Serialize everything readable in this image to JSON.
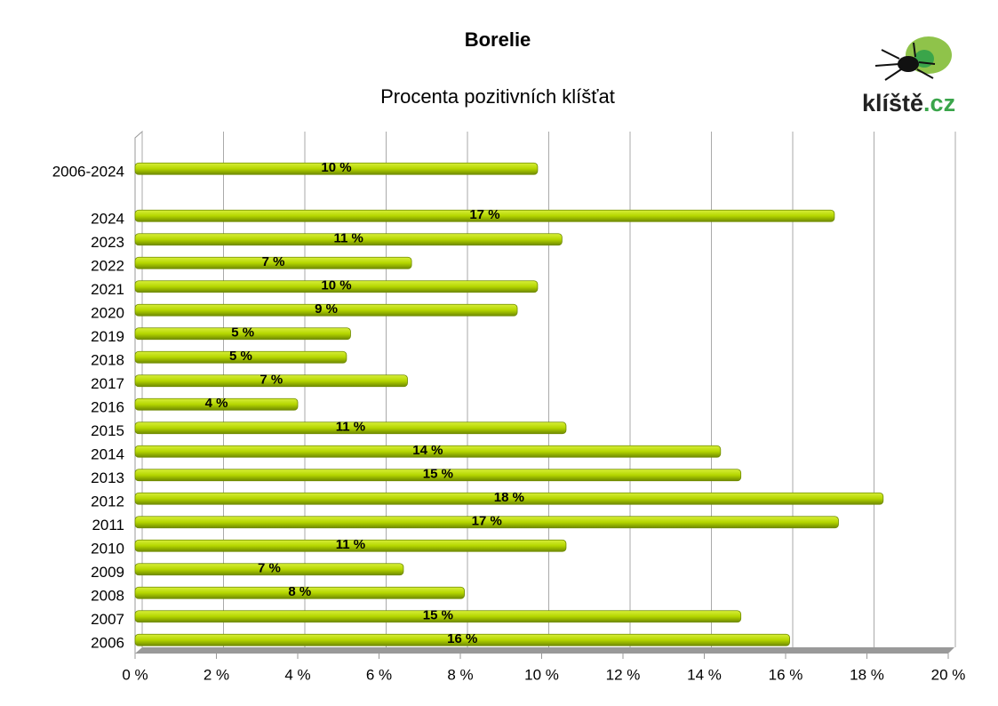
{
  "chart_data": {
    "type": "bar",
    "orientation": "horizontal",
    "title": "Borelie",
    "subtitle": "Procenta pozitivních klíšťat",
    "logo": {
      "name": "klíště",
      "domain": ".cz"
    },
    "categories": [
      "2006-2024",
      null,
      "2024",
      "2023",
      "2022",
      "2021",
      "2020",
      "2019",
      "2018",
      "2017",
      "2016",
      "2015",
      "2014",
      "2013",
      "2012",
      "2011",
      "2010",
      "2009",
      "2008",
      "2007",
      "2006"
    ],
    "values": [
      9.9,
      null,
      17.2,
      10.5,
      6.8,
      9.9,
      9.4,
      5.3,
      5.2,
      6.7,
      4.0,
      10.6,
      14.4,
      14.9,
      18.4,
      17.3,
      10.6,
      6.6,
      8.1,
      14.9,
      16.1
    ],
    "value_labels": [
      "10 %",
      null,
      "17 %",
      "11 %",
      "7 %",
      "10 %",
      "9 %",
      "5 %",
      "5 %",
      "7 %",
      "4 %",
      "11 %",
      "14 %",
      "15 %",
      "18 %",
      "17 %",
      "11 %",
      "7 %",
      "8 %",
      "15 %",
      "16 %"
    ],
    "color": "#b5d600",
    "xlim": [
      0,
      20
    ],
    "xticks": [
      {
        "value": 0,
        "label": "0 %"
      },
      {
        "value": 2,
        "label": "2 %"
      },
      {
        "value": 4,
        "label": "4 %"
      },
      {
        "value": 6,
        "label": "6 %"
      },
      {
        "value": 8,
        "label": "8 %"
      },
      {
        "value": 10,
        "label": "10 %"
      },
      {
        "value": 12,
        "label": "12 %"
      },
      {
        "value": 14,
        "label": "14 %"
      },
      {
        "value": 16,
        "label": "16 %"
      },
      {
        "value": 18,
        "label": "18 %"
      },
      {
        "value": 20,
        "label": "20 %"
      }
    ],
    "grid": true
  }
}
